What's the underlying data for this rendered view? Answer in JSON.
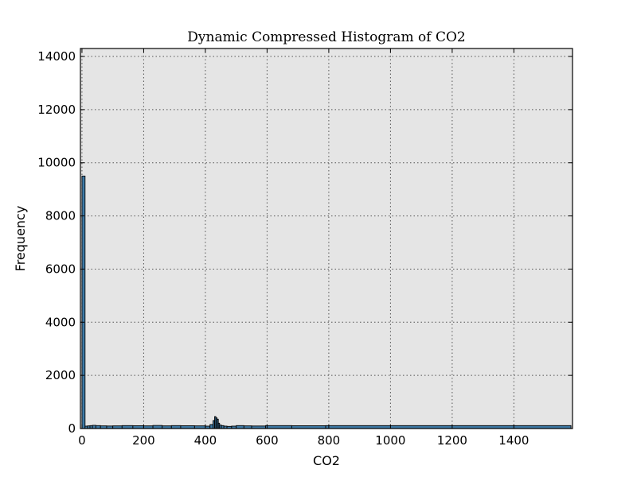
{
  "chart_data": {
    "type": "bar",
    "title": "Dynamic Compressed Histogram of CO2",
    "xlabel": "CO2",
    "ylabel": "Frequency",
    "xlim": [
      -5,
      1590
    ],
    "ylim": [
      0,
      14300
    ],
    "xticks": [
      0,
      200,
      400,
      600,
      800,
      1000,
      1200,
      1400
    ],
    "yticks": [
      0,
      2000,
      4000,
      6000,
      8000,
      10000,
      12000,
      14000
    ],
    "grid": true,
    "bins": [
      {
        "x0": 0,
        "x1": 10,
        "value": 9500
      },
      {
        "x0": 10,
        "x1": 18,
        "value": 90
      },
      {
        "x0": 18,
        "x1": 26,
        "value": 100
      },
      {
        "x0": 26,
        "x1": 34,
        "value": 110
      },
      {
        "x0": 34,
        "x1": 45,
        "value": 120
      },
      {
        "x0": 45,
        "x1": 60,
        "value": 110
      },
      {
        "x0": 60,
        "x1": 80,
        "value": 100
      },
      {
        "x0": 80,
        "x1": 100,
        "value": 95
      },
      {
        "x0": 100,
        "x1": 130,
        "value": 100
      },
      {
        "x0": 130,
        "x1": 165,
        "value": 110
      },
      {
        "x0": 165,
        "x1": 200,
        "value": 105
      },
      {
        "x0": 200,
        "x1": 230,
        "value": 100
      },
      {
        "x0": 230,
        "x1": 260,
        "value": 115
      },
      {
        "x0": 260,
        "x1": 290,
        "value": 100
      },
      {
        "x0": 290,
        "x1": 320,
        "value": 110
      },
      {
        "x0": 320,
        "x1": 365,
        "value": 105
      },
      {
        "x0": 365,
        "x1": 400,
        "value": 100
      },
      {
        "x0": 400,
        "x1": 415,
        "value": 90
      },
      {
        "x0": 415,
        "x1": 425,
        "value": 150
      },
      {
        "x0": 425,
        "x1": 430,
        "value": 300
      },
      {
        "x0": 430,
        "x1": 434,
        "value": 450
      },
      {
        "x0": 434,
        "x1": 438,
        "value": 400
      },
      {
        "x0": 438,
        "x1": 442,
        "value": 350
      },
      {
        "x0": 442,
        "x1": 446,
        "value": 200
      },
      {
        "x0": 446,
        "x1": 452,
        "value": 130
      },
      {
        "x0": 452,
        "x1": 460,
        "value": 110
      },
      {
        "x0": 460,
        "x1": 470,
        "value": 90
      },
      {
        "x0": 470,
        "x1": 485,
        "value": 80
      },
      {
        "x0": 485,
        "x1": 500,
        "value": 90
      },
      {
        "x0": 500,
        "x1": 525,
        "value": 110
      },
      {
        "x0": 525,
        "x1": 550,
        "value": 100
      },
      {
        "x0": 550,
        "x1": 595,
        "value": 95
      },
      {
        "x0": 595,
        "x1": 680,
        "value": 110
      },
      {
        "x0": 680,
        "x1": 790,
        "value": 105
      },
      {
        "x0": 790,
        "x1": 1585,
        "value": 110
      }
    ],
    "colors": {
      "bar_fill": "#3e7aa6",
      "bar_edge": "#000000",
      "plot_bg": "#e5e5e5",
      "grid": "#555555"
    }
  }
}
